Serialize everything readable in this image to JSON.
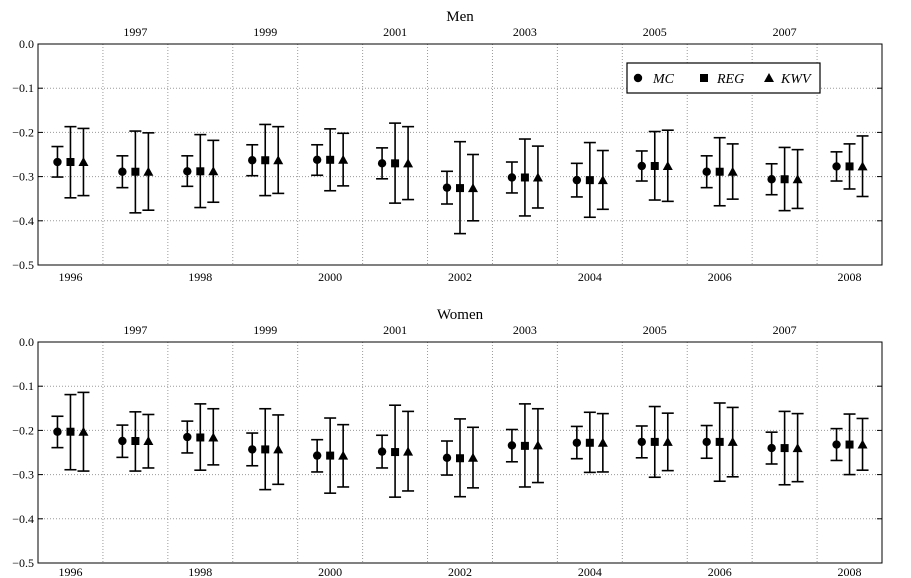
{
  "chart_data": [
    {
      "type": "scatter",
      "title": "Men",
      "xlabel": "",
      "ylabel": "",
      "ylim": [
        -0.5,
        0.0
      ],
      "yticks": [
        "0.0",
        "−0.1",
        "−0.2",
        "−0.3",
        "−0.4",
        "−0.5"
      ],
      "x_bottom_ticks": [
        "1996",
        "1998",
        "2000",
        "2002",
        "2004",
        "2006",
        "2008"
      ],
      "x_top_ticks": [
        "1997",
        "1999",
        "2001",
        "2003",
        "2005",
        "2007"
      ],
      "categories": [
        "1996",
        "1997",
        "1998",
        "1999",
        "2000",
        "2001",
        "2002",
        "2003",
        "2004",
        "2005",
        "2006",
        "2007",
        "2008"
      ],
      "grid": true,
      "legend_position": "top-right",
      "series": [
        {
          "name": "MC",
          "marker": "circle",
          "values": [
            -0.267,
            -0.289,
            -0.288,
            -0.263,
            -0.262,
            -0.27,
            -0.325,
            -0.302,
            -0.308,
            -0.276,
            -0.289,
            -0.306,
            -0.277
          ],
          "lower": [
            -0.301,
            -0.325,
            -0.322,
            -0.298,
            -0.297,
            -0.305,
            -0.362,
            -0.337,
            -0.346,
            -0.31,
            -0.325,
            -0.341,
            -0.31
          ],
          "upper": [
            -0.232,
            -0.253,
            -0.253,
            -0.228,
            -0.228,
            -0.235,
            -0.288,
            -0.267,
            -0.27,
            -0.242,
            -0.253,
            -0.271,
            -0.244
          ]
        },
        {
          "name": "REG",
          "marker": "square",
          "values": [
            -0.267,
            -0.289,
            -0.288,
            -0.263,
            -0.262,
            -0.27,
            -0.326,
            -0.302,
            -0.308,
            -0.276,
            -0.289,
            -0.306,
            -0.277
          ],
          "lower": [
            -0.348,
            -0.382,
            -0.37,
            -0.343,
            -0.332,
            -0.36,
            -0.429,
            -0.389,
            -0.392,
            -0.353,
            -0.366,
            -0.377,
            -0.328
          ],
          "upper": [
            -0.187,
            -0.197,
            -0.205,
            -0.182,
            -0.192,
            -0.179,
            -0.221,
            -0.215,
            -0.223,
            -0.198,
            -0.212,
            -0.234,
            -0.226
          ]
        },
        {
          "name": "KWV",
          "marker": "triangle",
          "values": [
            -0.267,
            -0.289,
            -0.288,
            -0.263,
            -0.262,
            -0.27,
            -0.326,
            -0.302,
            -0.308,
            -0.276,
            -0.289,
            -0.306,
            -0.277
          ],
          "lower": [
            -0.343,
            -0.376,
            -0.358,
            -0.338,
            -0.321,
            -0.352,
            -0.4,
            -0.371,
            -0.374,
            -0.356,
            -0.351,
            -0.372,
            -0.345
          ],
          "upper": [
            -0.191,
            -0.201,
            -0.218,
            -0.187,
            -0.202,
            -0.187,
            -0.25,
            -0.231,
            -0.241,
            -0.195,
            -0.226,
            -0.239,
            -0.208
          ]
        }
      ]
    },
    {
      "type": "scatter",
      "title": "Women",
      "xlabel": "",
      "ylabel": "",
      "ylim": [
        -0.5,
        0.0
      ],
      "yticks": [
        "0.0",
        "−0.1",
        "−0.2",
        "−0.3",
        "−0.4",
        "−0.5"
      ],
      "x_bottom_ticks": [
        "1996",
        "1998",
        "2000",
        "2002",
        "2004",
        "2006",
        "2008"
      ],
      "x_top_ticks": [
        "1997",
        "1999",
        "2001",
        "2003",
        "2005",
        "2007"
      ],
      "categories": [
        "1996",
        "1997",
        "1998",
        "1999",
        "2000",
        "2001",
        "2002",
        "2003",
        "2004",
        "2005",
        "2006",
        "2007",
        "2008"
      ],
      "grid": true,
      "series": [
        {
          "name": "MC",
          "marker": "circle",
          "values": [
            -0.203,
            -0.224,
            -0.215,
            -0.243,
            -0.257,
            -0.248,
            -0.262,
            -0.234,
            -0.228,
            -0.226,
            -0.226,
            -0.24,
            -0.232
          ],
          "lower": [
            -0.239,
            -0.261,
            -0.251,
            -0.28,
            -0.294,
            -0.285,
            -0.301,
            -0.271,
            -0.264,
            -0.262,
            -0.263,
            -0.276,
            -0.268
          ],
          "upper": [
            -0.168,
            -0.188,
            -0.179,
            -0.206,
            -0.221,
            -0.211,
            -0.224,
            -0.198,
            -0.191,
            -0.19,
            -0.189,
            -0.204,
            -0.196
          ]
        },
        {
          "name": "REG",
          "marker": "square",
          "values": [
            -0.203,
            -0.224,
            -0.216,
            -0.243,
            -0.257,
            -0.249,
            -0.263,
            -0.235,
            -0.228,
            -0.226,
            -0.226,
            -0.24,
            -0.232
          ],
          "lower": [
            -0.289,
            -0.292,
            -0.29,
            -0.334,
            -0.342,
            -0.351,
            -0.35,
            -0.328,
            -0.295,
            -0.306,
            -0.315,
            -0.323,
            -0.3
          ],
          "upper": [
            -0.119,
            -0.158,
            -0.14,
            -0.151,
            -0.172,
            -0.143,
            -0.174,
            -0.14,
            -0.159,
            -0.146,
            -0.138,
            -0.157,
            -0.163
          ]
        },
        {
          "name": "KWV",
          "marker": "triangle",
          "values": [
            -0.203,
            -0.224,
            -0.216,
            -0.243,
            -0.257,
            -0.248,
            -0.262,
            -0.234,
            -0.228,
            -0.226,
            -0.226,
            -0.24,
            -0.232
          ],
          "lower": [
            -0.292,
            -0.285,
            -0.278,
            -0.322,
            -0.328,
            -0.337,
            -0.33,
            -0.318,
            -0.294,
            -0.291,
            -0.305,
            -0.316,
            -0.29
          ],
          "upper": [
            -0.114,
            -0.164,
            -0.151,
            -0.165,
            -0.187,
            -0.157,
            -0.193,
            -0.151,
            -0.162,
            -0.161,
            -0.148,
            -0.162,
            -0.173
          ]
        }
      ]
    }
  ]
}
